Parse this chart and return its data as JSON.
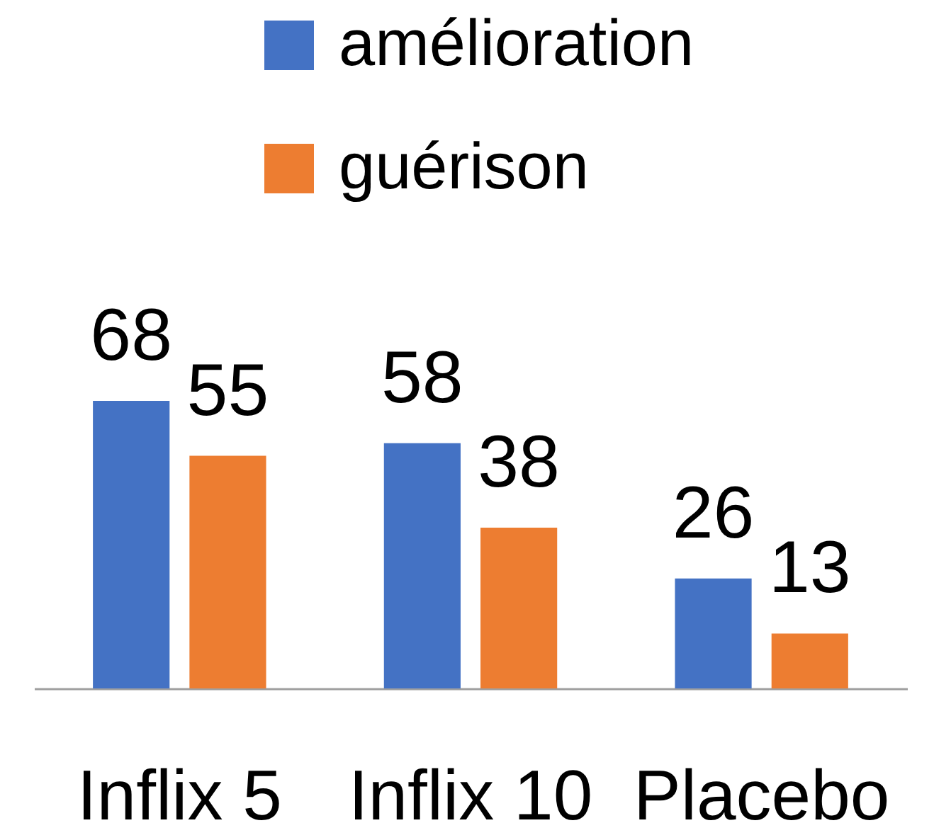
{
  "chart_data": {
    "type": "bar",
    "categories": [
      "Inflix 5",
      "Inflix 10",
      "Placebo"
    ],
    "series": [
      {
        "name": "amélioration",
        "color": "#4472c4",
        "values": [
          68,
          58,
          26
        ]
      },
      {
        "name": "guérison",
        "color": "#ed7d31",
        "values": [
          55,
          38,
          13
        ]
      }
    ],
    "data_labels": true,
    "legend": "top",
    "tick_labels": "x"
  }
}
